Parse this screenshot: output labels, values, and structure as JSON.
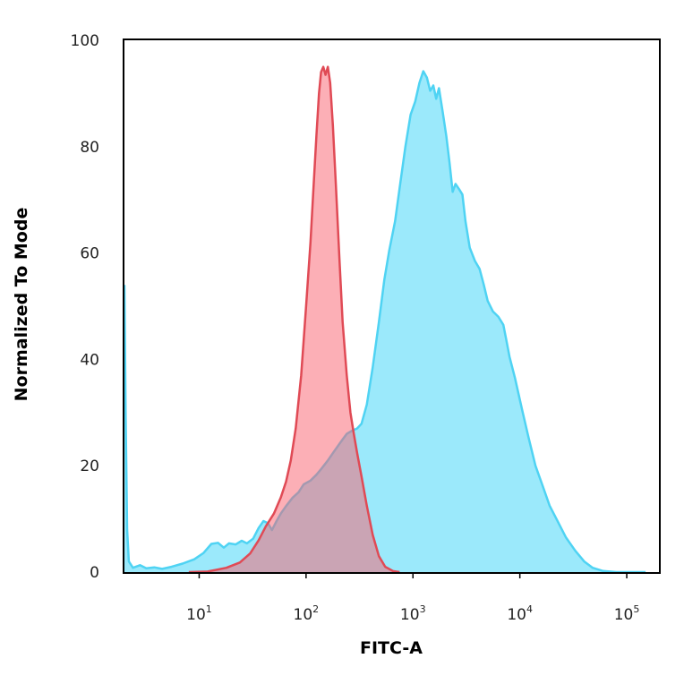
{
  "chart_data": {
    "type": "area",
    "title": "",
    "xlabel": "FITC-A",
    "ylabel": "Normalized To Mode",
    "x_scale": "log",
    "xlim": [
      2,
      200000
    ],
    "ylim": [
      0,
      100
    ],
    "x_ticks": [
      {
        "value": 10,
        "base": "10",
        "exp": "1"
      },
      {
        "value": 100,
        "base": "10",
        "exp": "2"
      },
      {
        "value": 1000,
        "base": "10",
        "exp": "3"
      },
      {
        "value": 10000,
        "base": "10",
        "exp": "4"
      },
      {
        "value": 100000,
        "base": "10",
        "exp": "5"
      }
    ],
    "y_ticks": [
      "0",
      "20",
      "40",
      "60",
      "80",
      "100"
    ],
    "grid": false,
    "legend": "none",
    "series": [
      {
        "color": "#4fd3f3",
        "fill": "#9be9fb",
        "points": [
          [
            2.0,
            54
          ],
          [
            2.05,
            30
          ],
          [
            2.12,
            8
          ],
          [
            2.2,
            2
          ],
          [
            2.4,
            0.8
          ],
          [
            2.8,
            1.3
          ],
          [
            3.2,
            0.7
          ],
          [
            3.8,
            0.9
          ],
          [
            4.5,
            0.6
          ],
          [
            5.5,
            1.0
          ],
          [
            7,
            1.6
          ],
          [
            9,
            2.4
          ],
          [
            11,
            3.6
          ],
          [
            13,
            5.3
          ],
          [
            15,
            5.5
          ],
          [
            17,
            4.6
          ],
          [
            19,
            5.4
          ],
          [
            22,
            5.2
          ],
          [
            25,
            5.9
          ],
          [
            28,
            5.4
          ],
          [
            32,
            6.3
          ],
          [
            36,
            8.3
          ],
          [
            40,
            9.6
          ],
          [
            44,
            9.2
          ],
          [
            48,
            7.9
          ],
          [
            53,
            9.6
          ],
          [
            58,
            11.0
          ],
          [
            65,
            12.4
          ],
          [
            75,
            14.0
          ],
          [
            85,
            15.0
          ],
          [
            95,
            16.5
          ],
          [
            110,
            17.2
          ],
          [
            125,
            18.3
          ],
          [
            140,
            19.5
          ],
          [
            160,
            21.0
          ],
          [
            180,
            22.5
          ],
          [
            210,
            24.4
          ],
          [
            240,
            26.0
          ],
          [
            270,
            26.6
          ],
          [
            300,
            27.0
          ],
          [
            330,
            27.9
          ],
          [
            370,
            31.5
          ],
          [
            420,
            38.5
          ],
          [
            480,
            47.0
          ],
          [
            540,
            55.0
          ],
          [
            600,
            60.5
          ],
          [
            680,
            66.0
          ],
          [
            760,
            73.0
          ],
          [
            850,
            80.0
          ],
          [
            950,
            86.0
          ],
          [
            1050,
            88.5
          ],
          [
            1150,
            92.0
          ],
          [
            1250,
            94.2
          ],
          [
            1350,
            93.0
          ],
          [
            1450,
            90.5
          ],
          [
            1550,
            91.5
          ],
          [
            1650,
            89.0
          ],
          [
            1750,
            91.0
          ],
          [
            1900,
            86.5
          ],
          [
            2050,
            82.0
          ],
          [
            2200,
            77.0
          ],
          [
            2350,
            71.5
          ],
          [
            2500,
            73.0
          ],
          [
            2700,
            72.0
          ],
          [
            2900,
            71.0
          ],
          [
            3100,
            66.0
          ],
          [
            3400,
            61.0
          ],
          [
            3800,
            58.5
          ],
          [
            4200,
            57.0
          ],
          [
            4600,
            54.0
          ],
          [
            5000,
            51.0
          ],
          [
            5600,
            49.0
          ],
          [
            6300,
            48.0
          ],
          [
            7000,
            46.5
          ],
          [
            7500,
            43.5
          ],
          [
            8000,
            40.5
          ],
          [
            9000,
            36.5
          ],
          [
            10500,
            30.5
          ],
          [
            12000,
            25.5
          ],
          [
            14000,
            20.0
          ],
          [
            16500,
            16.0
          ],
          [
            19000,
            12.5
          ],
          [
            22000,
            10.0
          ],
          [
            27000,
            6.5
          ],
          [
            33000,
            4.0
          ],
          [
            40000,
            2.0
          ],
          [
            48000,
            0.8
          ],
          [
            60000,
            0.2
          ],
          [
            80000,
            0
          ],
          [
            150000,
            0
          ]
        ]
      },
      {
        "color": "#e04a55",
        "fill": "rgba(250,95,110,0.50)",
        "points": [
          [
            8,
            0
          ],
          [
            12,
            0.1
          ],
          [
            18,
            0.8
          ],
          [
            24,
            1.8
          ],
          [
            30,
            3.5
          ],
          [
            36,
            6.0
          ],
          [
            42,
            8.6
          ],
          [
            50,
            11.0
          ],
          [
            58,
            14.0
          ],
          [
            65,
            17.0
          ],
          [
            72,
            21.0
          ],
          [
            80,
            27.0
          ],
          [
            90,
            37.0
          ],
          [
            100,
            50.0
          ],
          [
            110,
            62.0
          ],
          [
            118,
            73.0
          ],
          [
            125,
            82.0
          ],
          [
            132,
            90.0
          ],
          [
            138,
            94.0
          ],
          [
            145,
            95.0
          ],
          [
            152,
            93.5
          ],
          [
            160,
            95.0
          ],
          [
            168,
            92.0
          ],
          [
            178,
            84.0
          ],
          [
            190,
            73.0
          ],
          [
            205,
            59.0
          ],
          [
            220,
            47.0
          ],
          [
            240,
            37.0
          ],
          [
            260,
            30.0
          ],
          [
            280,
            26.0
          ],
          [
            300,
            22.5
          ],
          [
            330,
            18.0
          ],
          [
            370,
            12.5
          ],
          [
            420,
            7.0
          ],
          [
            480,
            3.0
          ],
          [
            550,
            1.0
          ],
          [
            650,
            0.2
          ],
          [
            750,
            0
          ]
        ]
      }
    ]
  }
}
